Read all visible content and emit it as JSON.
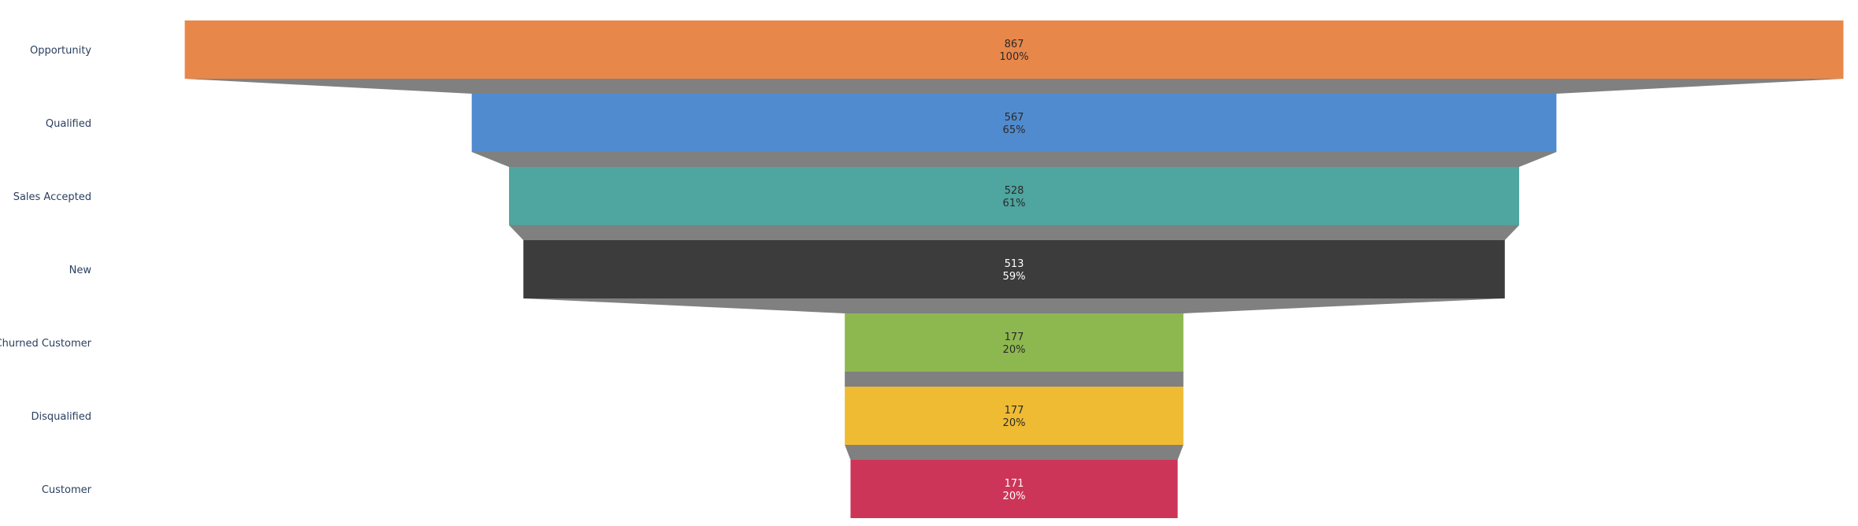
{
  "chart_data": {
    "type": "funnel",
    "categories": [
      "Opportunity",
      "Qualified",
      "Sales Accepted",
      "New",
      "Churned Customer",
      "Disqualified",
      "Customer"
    ],
    "values": [
      867,
      567,
      528,
      513,
      177,
      177,
      171
    ],
    "percent_labels": [
      "100%",
      "65%",
      "61%",
      "59%",
      "20%",
      "20%",
      "20%"
    ],
    "colors": [
      "#e8874a",
      "#518bcf",
      "#4fa59f",
      "#3c3c3c",
      "#8db84f",
      "#eebb33",
      "#cd3558"
    ],
    "text_colors": [
      "#2a2a2a",
      "#2a2a2a",
      "#2a2a2a",
      "#ffffff",
      "#2a2a2a",
      "#2a2a2a",
      "#ffffff"
    ],
    "connector_color": "#808080",
    "title": "",
    "xlabel": "",
    "ylabel": ""
  }
}
